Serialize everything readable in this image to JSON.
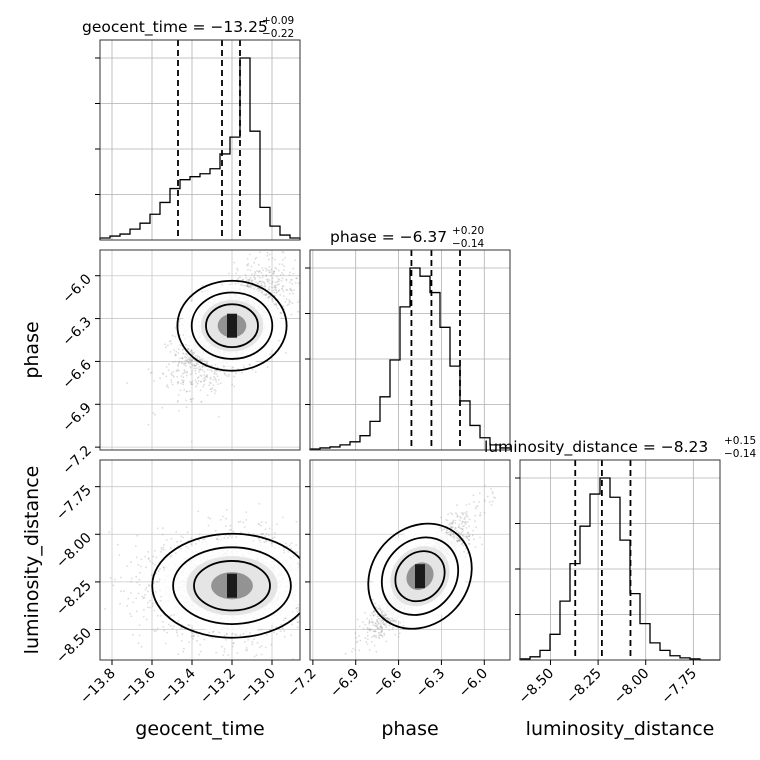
{
  "chart_data": {
    "type": "corner",
    "parameters": [
      "geocent_time",
      "phase",
      "luminosity_distance"
    ],
    "grid": true,
    "line_color": "#000000",
    "point_color": "#999999",
    "titles": [
      {
        "param": "geocent_time",
        "main": "geocent_time = −13.25",
        "upper": "+0.09",
        "lower": "−0.22"
      },
      {
        "param": "phase",
        "main": "phase = −6.37",
        "upper": "+0.20",
        "lower": "−0.14"
      },
      {
        "param": "luminosity_distance",
        "main": "luminosity_distance = −8.23",
        "upper": "+0.15",
        "lower": "−0.14"
      }
    ],
    "ranges": {
      "geocent_time": [
        -13.86,
        -12.86
      ],
      "phase": [
        -7.22,
        -5.82
      ],
      "luminosity_distance": [
        -8.66,
        -7.61
      ]
    },
    "ticks": {
      "geocent_time": [
        -13.8,
        -13.6,
        -13.4,
        -13.2,
        -13.0
      ],
      "phase": [
        -7.2,
        -6.9,
        -6.6,
        -6.3,
        -6.0
      ],
      "luminosity_distance": [
        -8.5,
        -8.25,
        -8.0,
        -7.75
      ]
    },
    "tick_labels": {
      "geocent_time": [
        "−13.8",
        "−13.6",
        "−13.4",
        "−13.2",
        "−13.0"
      ],
      "phase": [
        "−7.2",
        "−6.9",
        "−6.6",
        "−6.3",
        "−6.0"
      ],
      "luminosity_distance": [
        "−8.50",
        "−8.25",
        "−8.00",
        "−7.75"
      ]
    },
    "quantiles": {
      "geocent_time": [
        -13.47,
        -13.25,
        -13.16
      ],
      "phase": [
        -6.51,
        -6.37,
        -6.17
      ],
      "luminosity_distance": [
        -8.37,
        -8.23,
        -8.08
      ]
    },
    "histograms": {
      "geocent_time": {
        "bin_edges": [
          -13.86,
          -13.81,
          -13.76,
          -13.71,
          -13.66,
          -13.61,
          -13.56,
          -13.51,
          -13.46,
          -13.41,
          -13.36,
          -13.31,
          -13.26,
          -13.21,
          -13.16,
          -13.11,
          -13.06,
          -13.01,
          -12.96,
          -12.91,
          -12.86
        ],
        "counts": [
          2,
          4,
          6,
          11,
          17,
          26,
          38,
          52,
          61,
          64,
          67,
          72,
          87,
          104,
          184,
          110,
          33,
          14,
          5,
          2
        ]
      },
      "phase": {
        "bin_edges": [
          -7.22,
          -7.15,
          -7.08,
          -7.01,
          -6.94,
          -6.87,
          -6.8,
          -6.73,
          -6.66,
          -6.59,
          -6.52,
          -6.45,
          -6.38,
          -6.31,
          -6.24,
          -6.17,
          -6.1,
          -6.03,
          -5.96,
          -5.89,
          -5.82
        ],
        "counts": [
          1,
          2,
          3,
          5,
          8,
          14,
          28,
          52,
          88,
          140,
          178,
          170,
          154,
          120,
          82,
          48,
          24,
          12,
          5,
          2
        ]
      },
      "luminosity_distance": {
        "bin_edges": [
          -8.66,
          -8.6075,
          -8.555,
          -8.5025,
          -8.45,
          -8.3975,
          -8.345,
          -8.2925,
          -8.24,
          -8.1875,
          -8.135,
          -8.0825,
          -8.03,
          -7.9775,
          -7.925,
          -7.8725,
          -7.82,
          -7.7675,
          -7.715,
          -7.6625,
          -7.61
        ],
        "counts": [
          1,
          3,
          9,
          24,
          55,
          90,
          125,
          155,
          170,
          152,
          112,
          62,
          34,
          16,
          9,
          4,
          2,
          1,
          0,
          0
        ]
      }
    },
    "panels_2d": [
      {
        "x": "geocent_time",
        "y": "phase",
        "peak": [
          -13.2,
          -6.35
        ],
        "sigma": [
          0.13,
          0.15
        ],
        "correlation": 0.0
      },
      {
        "x": "geocent_time",
        "y": "luminosity_distance",
        "peak": [
          -13.2,
          -8.27
        ],
        "sigma": [
          0.19,
          0.13
        ],
        "correlation": 0.0
      },
      {
        "x": "phase",
        "y": "luminosity_distance",
        "peak": [
          -6.45,
          -8.22
        ],
        "sigma": [
          0.16,
          0.14
        ],
        "correlation": 0.9
      }
    ]
  }
}
